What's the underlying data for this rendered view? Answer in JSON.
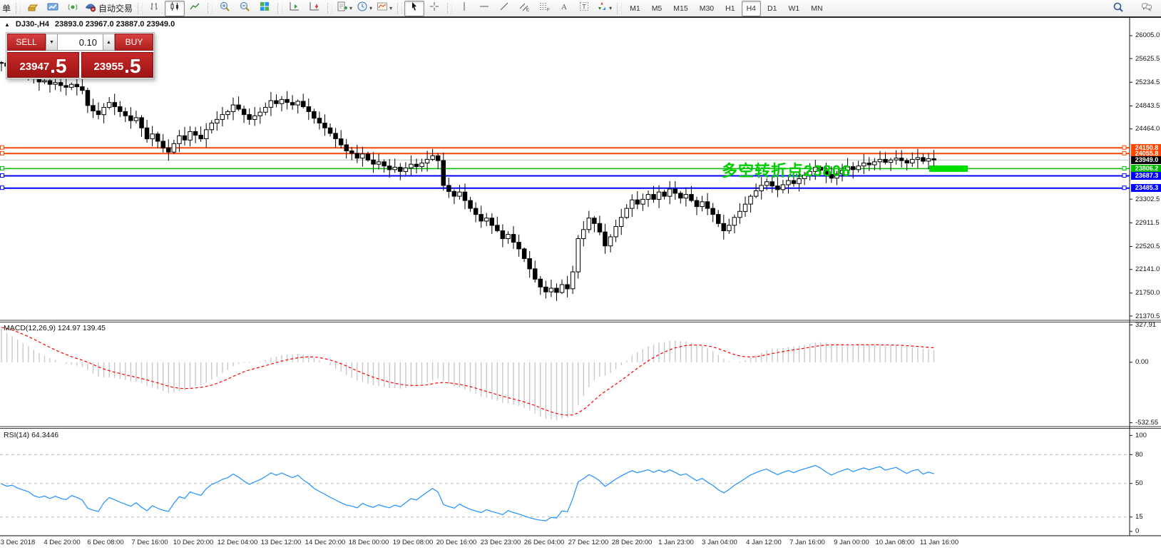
{
  "glyphs": {
    "collapse": "▲",
    "dropdown": "▾",
    "spinner_up": "▲",
    "spinner_down": "▼"
  },
  "toolbar": {
    "partial_button": "单",
    "autotrading_label": "自动交易",
    "groups": [
      {
        "items": [
          {
            "icon": "history-gold-icon"
          },
          {
            "icon": "chart-upload-icon"
          },
          {
            "icon": "signal-icon"
          },
          {
            "icon": "autotrading-icon",
            "label": "自动交易"
          }
        ]
      },
      {
        "items": [
          {
            "icon": "bar-chart-icon"
          },
          {
            "icon": "candlestick-chart-icon",
            "active": true
          },
          {
            "icon": "line-chart-icon"
          }
        ]
      },
      {
        "items": [
          {
            "icon": "zoom-in-icon"
          },
          {
            "icon": "zoom-out-icon"
          },
          {
            "icon": "tile-windows-icon"
          }
        ]
      },
      {
        "items": [
          {
            "icon": "auto-scroll-icon"
          },
          {
            "icon": "chart-shift-icon"
          }
        ]
      },
      {
        "items": [
          {
            "icon": "indicators-add-icon",
            "dropdown": true
          },
          {
            "icon": "periods-clock-icon",
            "dropdown": true
          },
          {
            "icon": "templates-icon",
            "dropdown": true
          }
        ]
      },
      {
        "items": [
          {
            "icon": "cursor-icon",
            "active": true
          },
          {
            "icon": "crosshair-icon"
          }
        ]
      },
      {
        "items": [
          {
            "icon": "vertical-line-icon"
          },
          {
            "icon": "horizontal-line-icon"
          },
          {
            "icon": "trendline-icon"
          },
          {
            "icon": "equidistant-channel-icon"
          },
          {
            "icon": "fibonacci-icon"
          },
          {
            "icon": "text-icon"
          },
          {
            "icon": "text-label-icon"
          },
          {
            "icon": "arrows-icon",
            "dropdown": true
          }
        ]
      }
    ],
    "timeframes": [
      "M1",
      "M5",
      "M15",
      "M30",
      "H1",
      "H4",
      "D1",
      "W1",
      "MN"
    ],
    "active_timeframe": "H4",
    "right_icons": [
      {
        "icon": "search-icon"
      },
      {
        "icon": "chat-icon"
      }
    ]
  },
  "header": {
    "symbol_period": "DJ30-,H4",
    "ohlc": "23893.0 23967.0 23887.0 23949.0"
  },
  "trade_panel": {
    "sell_label": "SELL",
    "buy_label": "BUY",
    "volume": "0.10",
    "sell_price_main": "23947",
    "sell_price_frac": ".5",
    "buy_price_main": "23955",
    "buy_price_frac": ".5",
    "accent_red": "#c12020"
  },
  "chart_data": {
    "type": "candlestick",
    "symbol": "DJ30-",
    "period": "H4",
    "price_ticks": [
      26005.0,
      25625.5,
      25234.5,
      24843.5,
      24464.0,
      23302.5,
      22911.5,
      22520.5,
      22141.0,
      21750.0,
      21370.5
    ],
    "time_labels": [
      "3 Dec 2018",
      "4 Dec 20:00",
      "6 Dec 08:00",
      "7 Dec 16:00",
      "10 Dec 20:00",
      "12 Dec 04:00",
      "13 Dec 12:00",
      "14 Dec 20:00",
      "18 Dec 00:00",
      "19 Dec 08:00",
      "20 Dec 16:00",
      "23 Dec 23:00",
      "26 Dec 04:00",
      "27 Dec 12:00",
      "28 Dec 20:00",
      "1 Jan 23:00",
      "3 Jan 04:00",
      "4 Jan 12:00",
      "7 Jan 16:00",
      "9 Jan 00:00",
      "10 Jan 08:00",
      "11 Jan 16:00"
    ],
    "candles": {
      "open_first": 25560,
      "closes": [
        25550,
        25500,
        25520,
        25460,
        25420,
        25380,
        25290,
        25240,
        25260,
        25200,
        25230,
        25180,
        25150,
        25200,
        25160,
        25100,
        24850,
        24760,
        24700,
        24820,
        24900,
        24830,
        24750,
        24680,
        24600,
        24650,
        24480,
        24300,
        24380,
        24260,
        24150,
        24080,
        24220,
        24350,
        24280,
        24420,
        24360,
        24300,
        24450,
        24560,
        24620,
        24700,
        24750,
        24860,
        24790,
        24700,
        24620,
        24680,
        24740,
        24820,
        24930,
        24880,
        24950,
        24900,
        24860,
        24920,
        24830,
        24750,
        24640,
        24560,
        24480,
        24390,
        24300,
        24200,
        24100,
        24060,
        23980,
        24050,
        23950,
        23880,
        23920,
        23850,
        23790,
        23830,
        23760,
        23820,
        23880,
        23840,
        23900,
        23960,
        24020,
        23940,
        23530,
        23430,
        23350,
        23420,
        23280,
        23150,
        23050,
        22940,
        22990,
        22870,
        22780,
        22650,
        22720,
        22590,
        22480,
        22320,
        22150,
        21980,
        21850,
        21770,
        21830,
        21760,
        21890,
        21820,
        22100,
        22650,
        22800,
        22990,
        22900,
        22760,
        22530,
        22680,
        22850,
        23000,
        23150,
        23290,
        23220,
        23300,
        23380,
        23300,
        23420,
        23350,
        23470,
        23400,
        23320,
        23380,
        23280,
        23180,
        23260,
        23150,
        23050,
        22900,
        22780,
        22870,
        23000,
        23100,
        23220,
        23350,
        23440,
        23530,
        23590,
        23520,
        23460,
        23540,
        23610,
        23560,
        23640,
        23700,
        23760,
        23830,
        23780,
        23710,
        23650,
        23720,
        23780,
        23840,
        23790,
        23850,
        23900,
        23870,
        23920,
        23960,
        23910,
        23950,
        23980,
        23940,
        23900,
        23960,
        23990,
        23930,
        23970,
        23949
      ]
    },
    "hlines": [
      {
        "price": 24150.8,
        "color": "#FF4500",
        "label": "24150.8",
        "width": 2
      },
      {
        "price": 24055.8,
        "color": "#FF4500",
        "label": "24055.8",
        "width": 2
      },
      {
        "price": 23949.0,
        "color": "#C0C0C0",
        "label": "23949.0",
        "label_bg": "#000000",
        "current": true,
        "width": 1
      },
      {
        "price": 23806.2,
        "color": "#00BB00",
        "label": "23806.2",
        "width": 1.5
      },
      {
        "price": 23687.3,
        "color": "#0000FF",
        "label": "23687.3",
        "width": 2
      },
      {
        "price": 23485.3,
        "color": "#0000FF",
        "label": "23485.3",
        "width": 2
      }
    ],
    "annotation": {
      "text": "多空转折点23806",
      "color": "#00CC00"
    },
    "highlight_rect": {
      "price": 23806.2,
      "color": "#00DD00"
    },
    "macd": {
      "label": "MACD(12,26,9)",
      "values": "124.97 139.45",
      "display": "MACD(12,26,9) 124.97 139.45",
      "params": [
        12,
        26,
        9
      ],
      "axis": [
        "327.91",
        "0.00",
        "-532.55"
      ],
      "histogram_color": "#C8C8C8",
      "signal_color": "#FF0000"
    },
    "rsi": {
      "label": "RSI(14)",
      "value": "64.3446",
      "display": "RSI(14) 64.3446",
      "period": 14,
      "axis": [
        "100",
        "80",
        "50",
        "15",
        "0"
      ],
      "levels": [
        80,
        50,
        15
      ],
      "line_color": "#1E90FF"
    }
  }
}
